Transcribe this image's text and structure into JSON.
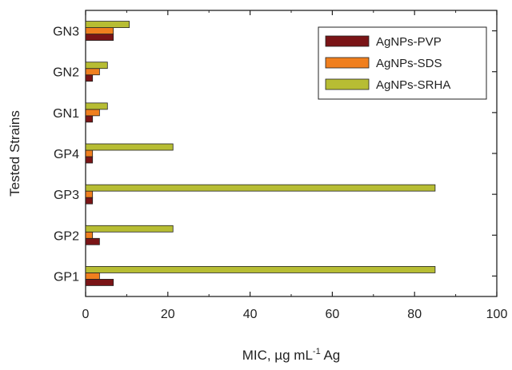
{
  "chart_data": {
    "type": "bar",
    "orientation": "horizontal",
    "categories": [
      "GP1",
      "GP2",
      "GP3",
      "GP4",
      "GN1",
      "GN2",
      "GN3"
    ],
    "series": [
      {
        "name": "AgNPs-PVP",
        "color": "#7a1416",
        "values": [
          6.75,
          3.38,
          1.69,
          1.69,
          1.69,
          1.69,
          6.75
        ]
      },
      {
        "name": "AgNPs-SDS",
        "color": "#f07f1e",
        "values": [
          3.38,
          1.69,
          1.69,
          1.69,
          3.38,
          3.38,
          6.75
        ]
      },
      {
        "name": "AgNPs-SRHA",
        "color": "#b7bd33",
        "values": [
          85,
          21.25,
          85,
          21.25,
          5.31,
          5.31,
          10.63
        ]
      }
    ],
    "xlabel": {
      "main": "MIC, µg mL",
      "sup": "-1",
      "tail": " Ag"
    },
    "ylabel": "Tested Strains",
    "xlim": [
      0,
      100
    ],
    "xticks": [
      "0",
      "20",
      "40",
      "60",
      "80",
      "100"
    ],
    "legend_position": "top-right",
    "grid": false
  }
}
